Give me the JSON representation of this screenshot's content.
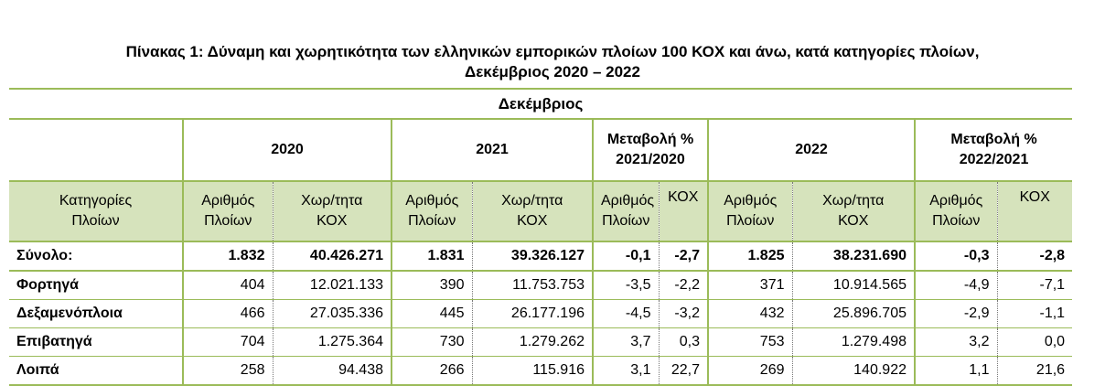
{
  "title": {
    "line1": "Πίνακας 1: Δύναμη και χωρητικότητα των ελληνικών εμπορικών πλοίων 100 ΚΟΧ και άνω, κατά κατηγορίες πλοίων,",
    "line2": "Δεκέμβριος 2020 – 2022"
  },
  "header": {
    "month": "Δεκέμβριος",
    "y2020": "2020",
    "y2021": "2021",
    "chg1_line1": "Μεταβολή %",
    "chg1_line2": "2021/2020",
    "y2022": "2022",
    "chg2_line1": "Μεταβολή %",
    "chg2_line2": "2022/2021"
  },
  "sub": {
    "cat_line1": "Κατηγορίες",
    "cat_line2": "Πλοίων",
    "num_line1": "Αριθμός",
    "num_line2": "Πλοίων",
    "cap_line1": "Χωρ/τητα",
    "cap_line2": "ΚΟΧ",
    "kox": "ΚΟΧ"
  },
  "rows": [
    {
      "label": "Σύνολο:",
      "n2020": "1.832",
      "c2020": "40.426.271",
      "n2021": "1.831",
      "c2021": "39.326.127",
      "chgN1": "-0,1",
      "chgC1": "-2,7",
      "n2022": "1.825",
      "c2022": "38.231.690",
      "chgN2": "-0,3",
      "chgC2": "-2,8"
    },
    {
      "label": "Φορτηγά",
      "n2020": "404",
      "c2020": "12.021.133",
      "n2021": "390",
      "c2021": "11.753.753",
      "chgN1": "-3,5",
      "chgC1": "-2,2",
      "n2022": "371",
      "c2022": "10.914.565",
      "chgN2": "-4,9",
      "chgC2": "-7,1"
    },
    {
      "label": "Δεξαμενόπλοια",
      "n2020": "466",
      "c2020": "27.035.336",
      "n2021": "445",
      "c2021": "26.177.196",
      "chgN1": "-4,5",
      "chgC1": "-3,2",
      "n2022": "432",
      "c2022": "25.896.705",
      "chgN2": "-2,9",
      "chgC2": "-1,1"
    },
    {
      "label": "Επιβατηγά",
      "n2020": "704",
      "c2020": "1.275.364",
      "n2021": "730",
      "c2021": "1.279.262",
      "chgN1": "3,7",
      "chgC1": "0,3",
      "n2022": "753",
      "c2022": "1.279.498",
      "chgN2": "3,2",
      "chgC2": "0,0"
    },
    {
      "label": "Λοιπά",
      "n2020": "258",
      "c2020": "94.438",
      "n2021": "266",
      "c2021": "115.916",
      "chgN1": "3,1",
      "chgC1": "22,7",
      "n2022": "269",
      "c2022": "140.922",
      "chgN2": "1,1",
      "chgC2": "21,6"
    }
  ],
  "colors": {
    "accent_line": "#9bbb59",
    "subheader_fill": "#d6e3bc"
  }
}
